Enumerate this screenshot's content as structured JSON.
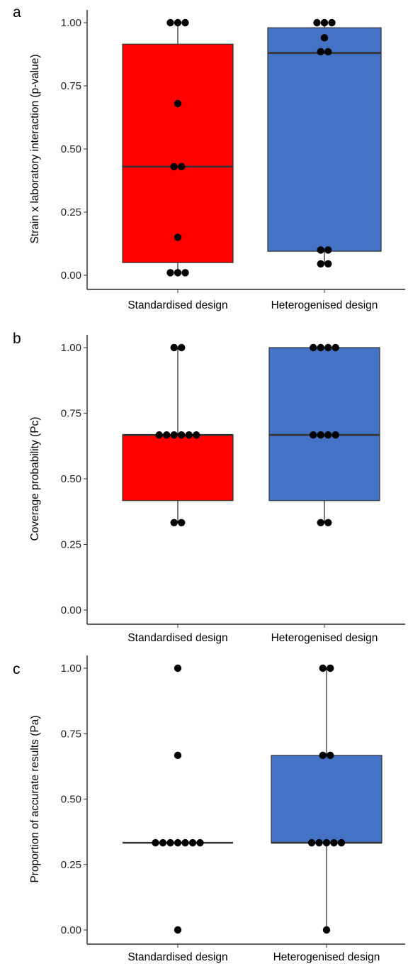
{
  "chart_data": [
    {
      "type": "box",
      "panel_label": "a",
      "ylabel": "Strain x laboratory interaction (p-value)",
      "ylim": [
        0,
        1
      ],
      "yticks": [
        "0.00",
        "0.25",
        "0.50",
        "0.75",
        "1.00"
      ],
      "categories": [
        "Standardised design",
        "Heterogenised design"
      ],
      "boxes": [
        {
          "category": "Standardised design",
          "color": "#ff0000",
          "min": 0.01,
          "q1": 0.05,
          "median": 0.43,
          "q3": 0.915,
          "max": 1.0
        },
        {
          "category": "Heterogenised design",
          "color": "#4472c4",
          "min": 0.045,
          "q1": 0.095,
          "median": 0.88,
          "q3": 0.98,
          "max": 1.0
        }
      ],
      "points": [
        {
          "category": "Standardised design",
          "values": [
            1.0,
            1.0,
            1.0,
            0.68,
            0.43,
            0.43,
            0.15,
            0.01,
            0.01,
            0.01
          ]
        },
        {
          "category": "Heterogenised design",
          "values": [
            1.0,
            1.0,
            1.0,
            0.94,
            0.885,
            0.885,
            0.1,
            0.1,
            0.045,
            0.045
          ]
        }
      ]
    },
    {
      "type": "box",
      "panel_label": "b",
      "ylabel": "Coverage probability (Pc)",
      "ylim": [
        0,
        1
      ],
      "yticks": [
        "0.00",
        "0.25",
        "0.50",
        "0.75",
        "1.00"
      ],
      "categories": [
        "Standardised design",
        "Heterogenised design"
      ],
      "boxes": [
        {
          "category": "Standardised design",
          "color": "#ff0000",
          "min": 0.333,
          "q1": 0.417,
          "median": 0.667,
          "q3": 0.667,
          "max": 1.0
        },
        {
          "category": "Heterogenised design",
          "color": "#4472c4",
          "min": 0.333,
          "q1": 0.417,
          "median": 0.667,
          "q3": 1.0,
          "max": 1.0
        }
      ],
      "points": [
        {
          "category": "Standardised design",
          "values": [
            1.0,
            1.0,
            0.667,
            0.667,
            0.667,
            0.667,
            0.667,
            0.667,
            0.333,
            0.333
          ]
        },
        {
          "category": "Heterogenised design",
          "values": [
            1.0,
            1.0,
            1.0,
            1.0,
            0.667,
            0.667,
            0.667,
            0.667,
            0.333,
            0.333
          ]
        }
      ]
    },
    {
      "type": "box",
      "panel_label": "c",
      "ylabel": "Proportion of accurate results (Pa)",
      "ylim": [
        0,
        1
      ],
      "yticks": [
        "0.00",
        "0.25",
        "0.50",
        "0.75",
        "1.00"
      ],
      "categories": [
        "Standardised design",
        "Heterogenised design"
      ],
      "boxes": [
        {
          "category": "Standardised design",
          "color": "#ff0000",
          "min": 0.333,
          "q1": 0.333,
          "median": 0.333,
          "q3": 0.333,
          "max": 0.333
        },
        {
          "category": "Heterogenised design",
          "color": "#4472c4",
          "min": 0.0,
          "q1": 0.333,
          "median": 0.333,
          "q3": 0.667,
          "max": 1.0
        }
      ],
      "points": [
        {
          "category": "Standardised design",
          "values": [
            1.0,
            0.667,
            0.333,
            0.333,
            0.333,
            0.333,
            0.333,
            0.333,
            0.333,
            0.0
          ]
        },
        {
          "category": "Heterogenised design",
          "values": [
            1.0,
            1.0,
            0.667,
            0.667,
            0.333,
            0.333,
            0.333,
            0.333,
            0.333,
            0.0
          ]
        }
      ]
    }
  ]
}
